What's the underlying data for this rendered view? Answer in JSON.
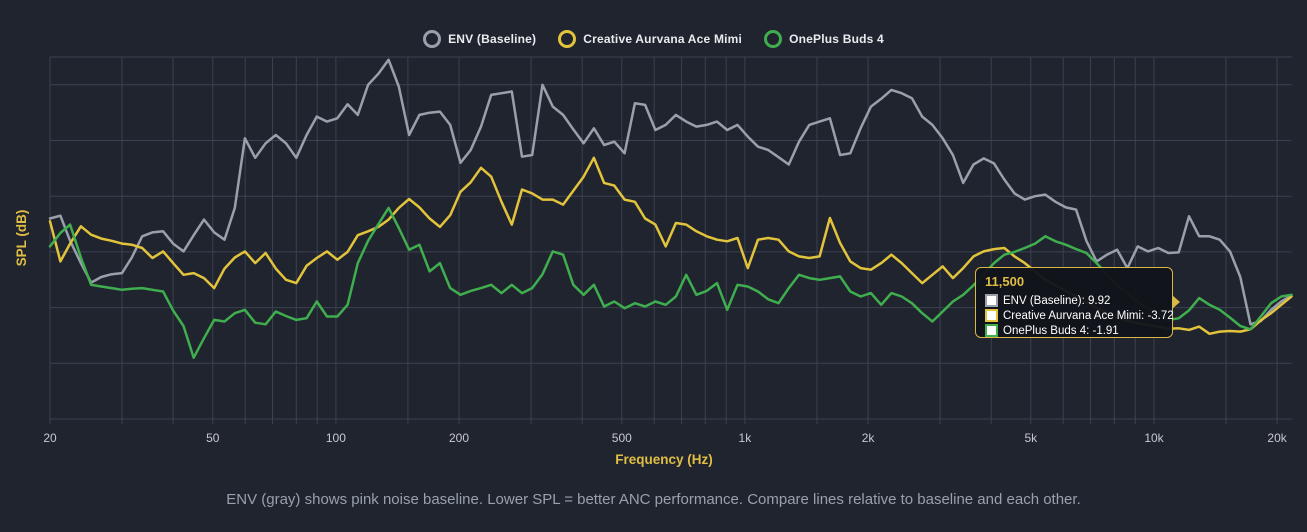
{
  "legend": {
    "items": [
      {
        "label": "ENV (Baseline)",
        "color": "#9aa0ab"
      },
      {
        "label": "Creative Aurvana Ace Mimi",
        "color": "#e2c33c"
      },
      {
        "label": "OnePlus Buds 4",
        "color": "#3fae4e"
      }
    ]
  },
  "axis": {
    "x_title": "Frequency (Hz)",
    "y_title": "SPL (dB)"
  },
  "tooltip": {
    "title": "11,500",
    "rows": [
      {
        "text": "ENV (Baseline): 9.92",
        "color": "#9aa0ab"
      },
      {
        "text": "Creative Aurvana Ace Mimi: -3.72",
        "color": "#e2c33c"
      },
      {
        "text": "OnePlus Buds 4: -1.91",
        "color": "#3fae4e"
      }
    ]
  },
  "caption": "ENV (gray) shows pink noise baseline. Lower SPL = better ANC performance. Compare lines relative to baseline and each other.",
  "colors": {
    "background": "#20242e",
    "grid": "#3b4150",
    "tick_label": "#c6c9d0",
    "axis_title": "#e0bd45",
    "caption": "#98a0ad",
    "tooltip_border": "#d9b845",
    "tooltip_bg": "#11141b"
  },
  "chart_data": {
    "type": "line",
    "x_scale": "log",
    "title": "",
    "xlabel": "Frequency (Hz)",
    "ylabel": "SPL (dB)",
    "ylim": [
      -20,
      45
    ],
    "y_grid_step": 10,
    "grid": true,
    "legend_position": "top",
    "tooltip_x": 11494,
    "tooltip_values": {
      "ENV (Baseline)": 9.92,
      "Creative Aurvana Ace Mimi": -3.72,
      "OnePlus Buds 4": -1.91
    },
    "x_gridlines": [
      20,
      30,
      40,
      50,
      60,
      70,
      80,
      90,
      100,
      150,
      200,
      300,
      400,
      500,
      600,
      700,
      800,
      900,
      1000,
      1500,
      2000,
      3000,
      4000,
      5000,
      6000,
      7000,
      8000,
      9000,
      10000,
      15000,
      20000
    ],
    "x_ticks": [
      {
        "f": 20,
        "label": "20"
      },
      {
        "f": 50,
        "label": "50"
      },
      {
        "f": 100,
        "label": "100"
      },
      {
        "f": 200,
        "label": "200"
      },
      {
        "f": 500,
        "label": "500"
      },
      {
        "f": 1000,
        "label": "1k"
      },
      {
        "f": 2000,
        "label": "2k"
      },
      {
        "f": 5000,
        "label": "5k"
      },
      {
        "f": 10000,
        "label": "10k"
      },
      {
        "f": 20000,
        "label": "20k"
      }
    ],
    "x": [
      20,
      21.2,
      22.4,
      23.8,
      25.2,
      26.7,
      28.3,
      30,
      31.7,
      33.6,
      35.6,
      37.8,
      40,
      42.4,
      44.9,
      47.6,
      50.4,
      53.4,
      56.6,
      59.9,
      63.5,
      67.3,
      71.3,
      75.5,
      80,
      84.8,
      89.8,
      95.1,
      100.8,
      106.8,
      113.1,
      119.9,
      127,
      134.5,
      142.5,
      151,
      160,
      169.5,
      179.6,
      190.3,
      201.6,
      213.6,
      226.3,
      239.7,
      254,
      269.1,
      285.1,
      302,
      320,
      339,
      359.2,
      380.5,
      403.2,
      427.2,
      452.5,
      479.4,
      508,
      538.2,
      570.2,
      604.1,
      640,
      678,
      718.4,
      761.1,
      806.3,
      854.3,
      905.1,
      958.9,
      1016,
      1076,
      1140,
      1208,
      1280,
      1356,
      1437,
      1522,
      1613,
      1709,
      1810,
      1918,
      2032,
      2153,
      2281,
      2417,
      2560,
      2712,
      2873,
      3044,
      3225,
      3417,
      3620,
      3835,
      4063,
      4305,
      4561,
      4832,
      5120,
      5424,
      5746,
      6089,
      6451,
      6834,
      7241,
      7672,
      8127,
      8611,
      9123,
      9665,
      10240,
      10849,
      11494,
      12177,
      12901,
      13668,
      14481,
      15342,
      16255,
      17222,
      18246,
      19331,
      20480,
      21688
    ],
    "series": [
      {
        "name": "ENV (Baseline)",
        "color": "#9aa0ab",
        "values": [
          16,
          16.5,
          12,
          8,
          4.5,
          5.5,
          6,
          6.2,
          9,
          12.8,
          13.5,
          13.7,
          11.5,
          10.1,
          13,
          15.8,
          13.5,
          12.2,
          17.9,
          30.4,
          26.9,
          29.5,
          31,
          29.5,
          26.9,
          31,
          34.3,
          33.4,
          34,
          36.5,
          34.6,
          40,
          42,
          44.5,
          39.7,
          31,
          34.6,
          35,
          35.2,
          32.8,
          26,
          28.3,
          32.5,
          38.2,
          38.5,
          38.8,
          27.1,
          27.4,
          40,
          36.1,
          34.6,
          32,
          29.5,
          32.2,
          29.2,
          29.8,
          27.7,
          36.7,
          36.4,
          31.9,
          32.8,
          34.6,
          33.4,
          32.5,
          32.8,
          33.4,
          31.9,
          32.8,
          30.7,
          28.9,
          28.3,
          27,
          25.7,
          29.8,
          32.8,
          33.4,
          34,
          27.4,
          27.7,
          32.2,
          36.1,
          37.5,
          39.1,
          38.5,
          37.6,
          34.3,
          32.8,
          30.4,
          27.4,
          22.4,
          25.7,
          26.8,
          25.9,
          23,
          20.5,
          19.4,
          20,
          20.3,
          19,
          18,
          17.6,
          12,
          8.3,
          9.5,
          10.4,
          7.1,
          11,
          10.1,
          10.7,
          9.8,
          9.92,
          16.4,
          12.8,
          12.8,
          12.2,
          10.1,
          5.5,
          -3,
          -2.4,
          -0.4,
          1.1,
          2.2
        ]
      },
      {
        "name": "Creative Aurvana Ace Mimi",
        "color": "#e2c33c",
        "values": [
          15.5,
          8.3,
          11.5,
          14.6,
          13.1,
          12.4,
          12,
          11.5,
          11.3,
          10.7,
          8.9,
          10.1,
          8,
          5.9,
          6.2,
          5.3,
          3.5,
          7,
          9,
          10.1,
          8,
          9.8,
          7,
          5,
          4.4,
          7.5,
          8.9,
          10.1,
          8.6,
          10,
          13,
          13.7,
          14.5,
          15.8,
          17.9,
          19.5,
          18,
          16,
          14.5,
          16.6,
          20.8,
          22.5,
          25.1,
          23.5,
          19,
          14.9,
          21.2,
          20.5,
          19.4,
          19.4,
          18.5,
          21,
          23.5,
          26.9,
          22.4,
          21.9,
          19.4,
          19,
          16,
          14.9,
          11,
          15.2,
          14.9,
          13.7,
          12.8,
          12.2,
          11.9,
          12.5,
          7.1,
          12.2,
          12.5,
          12.2,
          10.1,
          9.2,
          8.9,
          9.2,
          16.1,
          11.6,
          8.3,
          7.1,
          6.8,
          8,
          9.5,
          8,
          6.2,
          4.4,
          5.9,
          7.4,
          5.3,
          7.1,
          9.2,
          10.1,
          10.5,
          10.7,
          9.2,
          8,
          6.5,
          5,
          4,
          3,
          2,
          1,
          0,
          -1,
          -1.8,
          -2.4,
          -2.8,
          -3.1,
          -3.4,
          -3.8,
          -3.72,
          -4,
          -3.4,
          -4.7,
          -4.3,
          -4.2,
          -4.3,
          -3.9,
          -2.3,
          -1,
          0.5,
          2
        ]
      },
      {
        "name": "OnePlus Buds 4",
        "color": "#3fae4e",
        "values": [
          11,
          13.4,
          14.9,
          9,
          4.1,
          3.8,
          3.5,
          3.2,
          3.4,
          3.5,
          3.2,
          2.9,
          -0.5,
          -3.3,
          -9,
          -5.5,
          -2.2,
          -2.5,
          -1,
          -0.4,
          -2.7,
          -3,
          -0.7,
          -1.5,
          -2.2,
          -1.9,
          1.1,
          -1.6,
          -1.6,
          0.5,
          8,
          12,
          15,
          17.9,
          14.3,
          10.4,
          11.3,
          6.5,
          8,
          3.5,
          2.3,
          3,
          3.5,
          4.1,
          2.6,
          4.1,
          2.6,
          3.5,
          6,
          10.1,
          9.5,
          4.1,
          2.3,
          4.1,
          0.2,
          1.1,
          -0.1,
          0.8,
          0.2,
          1.1,
          0.5,
          2,
          5.9,
          2.3,
          3,
          4.4,
          -0.4,
          4.1,
          3.8,
          2.9,
          1.5,
          0.8,
          3.5,
          5.9,
          5.3,
          5,
          5.3,
          5.6,
          2.9,
          2,
          2.6,
          0.5,
          2.6,
          2,
          0.8,
          -1,
          -2.5,
          -0.7,
          1.1,
          2.3,
          4,
          6,
          8,
          9.5,
          10,
          10.7,
          11.5,
          12.8,
          11.9,
          11.3,
          10.5,
          9.8,
          8,
          6,
          4,
          2.5,
          1,
          0,
          -1,
          -2.2,
          -1.91,
          -0.5,
          1.7,
          0.5,
          -0.4,
          -1.8,
          -3.3,
          -3.9,
          -1.6,
          0.8,
          2,
          2.3
        ]
      }
    ]
  }
}
